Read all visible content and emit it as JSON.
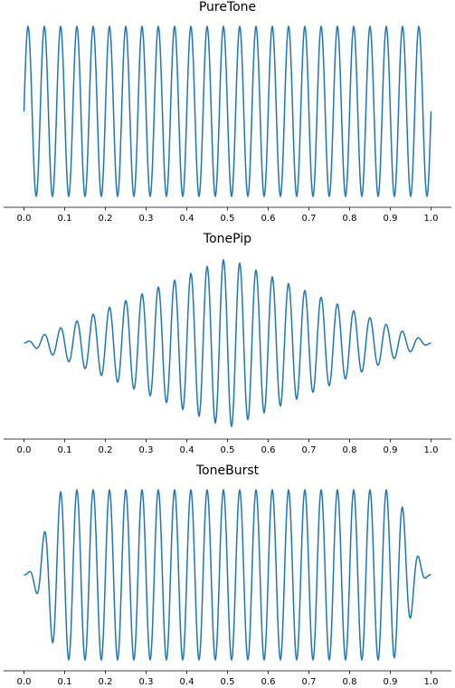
{
  "chart_data": [
    {
      "type": "line",
      "title": "PureTone",
      "xlabel": "",
      "ylabel": "",
      "xlim": [
        -0.05,
        1.05
      ],
      "ylim": [
        -1.1,
        1.1
      ],
      "x_ticks": [
        "0.0",
        "0.1",
        "0.2",
        "0.3",
        "0.4",
        "0.5",
        "0.6",
        "0.7",
        "0.8",
        "0.9",
        "1.0"
      ],
      "y_axis_visible": false,
      "grid": false,
      "signal": {
        "frequency_cycles_per_unit": 25,
        "envelope": "constant",
        "peak_amplitude": 1.0
      },
      "line_color": "#1f77b4"
    },
    {
      "type": "line",
      "title": "TonePip",
      "xlabel": "",
      "ylabel": "",
      "xlim": [
        -0.05,
        1.05
      ],
      "ylim": [
        -1.1,
        1.1
      ],
      "x_ticks": [
        "0.0",
        "0.1",
        "0.2",
        "0.3",
        "0.4",
        "0.5",
        "0.6",
        "0.7",
        "0.8",
        "0.9",
        "1.0"
      ],
      "y_axis_visible": false,
      "grid": false,
      "signal": {
        "frequency_cycles_per_unit": 25,
        "envelope": "triangular",
        "peak_amplitude": 1.0
      },
      "line_color": "#1f77b4"
    },
    {
      "type": "line",
      "title": "ToneBurst",
      "xlabel": "",
      "ylabel": "",
      "xlim": [
        -0.05,
        1.05
      ],
      "ylim": [
        -1.1,
        1.1
      ],
      "x_ticks": [
        "0.0",
        "0.1",
        "0.2",
        "0.3",
        "0.4",
        "0.5",
        "0.6",
        "0.7",
        "0.8",
        "0.9",
        "1.0"
      ],
      "y_axis_visible": false,
      "grid": false,
      "signal": {
        "frequency_cycles_per_unit": 25,
        "envelope": "ramped-burst",
        "ramp_duration": 0.1,
        "peak_amplitude": 1.0
      },
      "line_color": "#1f77b4"
    }
  ]
}
